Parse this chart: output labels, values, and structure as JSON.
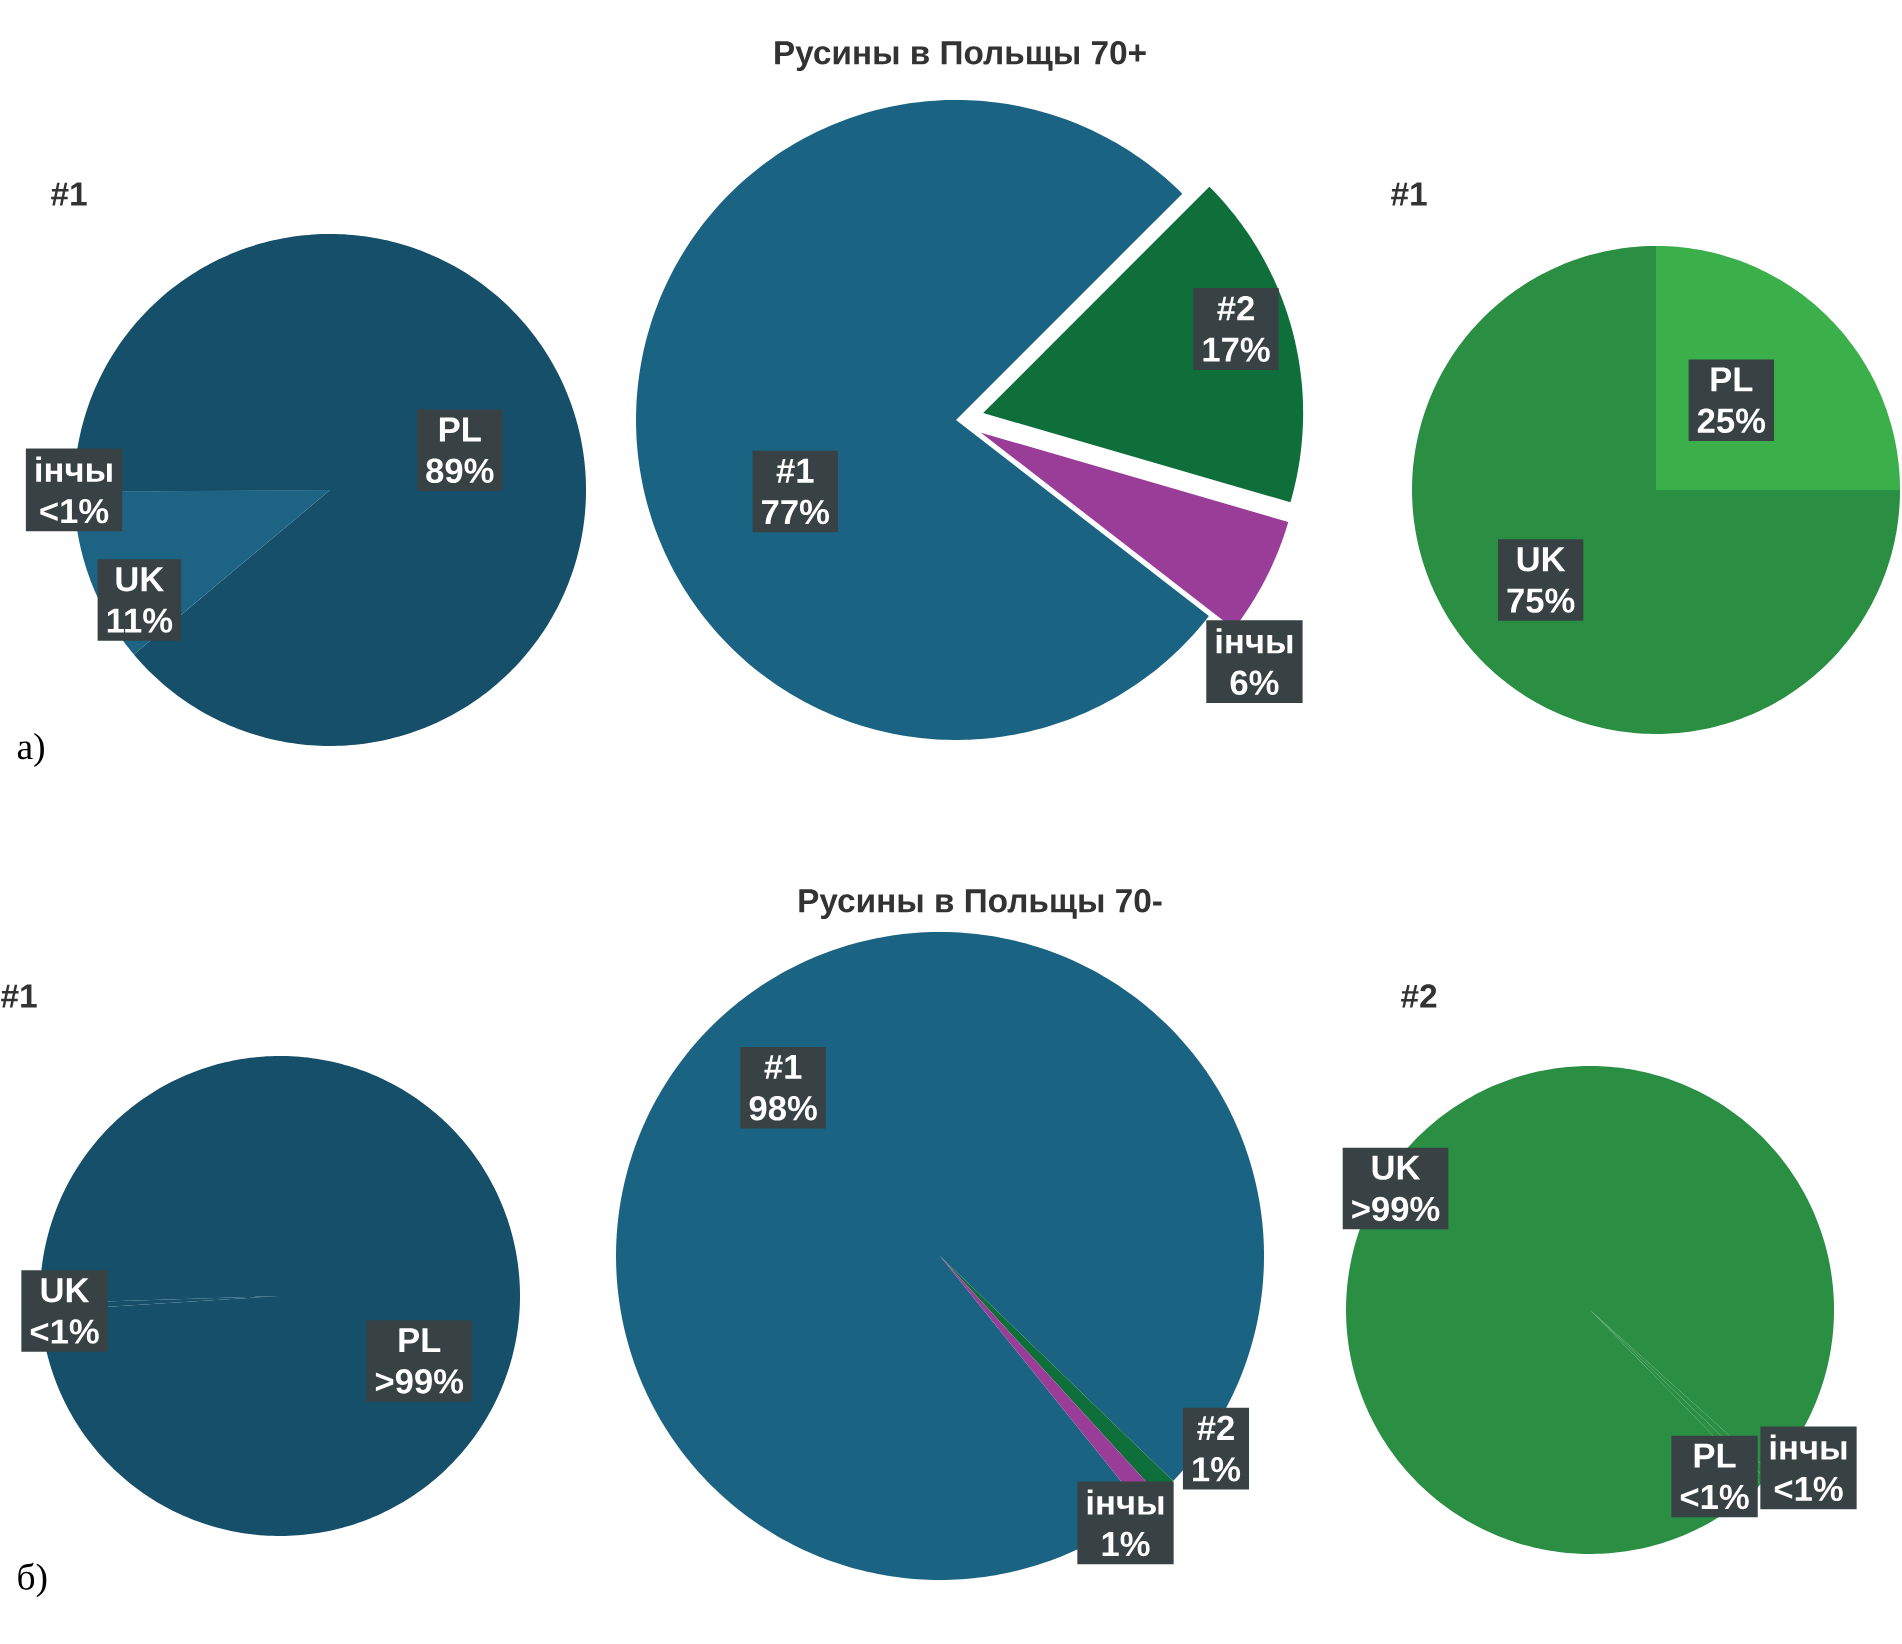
{
  "chart_data": [
    {
      "type": "pie",
      "title": "#1",
      "categories": [
        "PL",
        "UK",
        "інчы"
      ],
      "values": [
        89,
        11,
        0.3
      ],
      "value_labels": [
        "89%",
        "11%",
        "<1%"
      ],
      "colors": [
        "#154f69",
        "#1d6384",
        "#154f69"
      ],
      "annotations": [
        "а)"
      ]
    },
    {
      "type": "pie",
      "title": "Русины в Польщы 70+",
      "categories": [
        "#1",
        "#2",
        "інчы"
      ],
      "values": [
        77,
        17,
        6
      ],
      "value_labels": [
        "77%",
        "17%",
        "6%"
      ],
      "colors": [
        "#1a6383",
        "#0e6f3a",
        "#9a3d98"
      ]
    },
    {
      "type": "pie",
      "title": "#1",
      "categories": [
        "PL",
        "UK"
      ],
      "values": [
        25,
        75
      ],
      "value_labels": [
        "25%",
        "75%"
      ],
      "colors": [
        "#3aaf4a",
        "#2a8f42"
      ]
    },
    {
      "type": "pie",
      "title": "#1",
      "categories": [
        "PL",
        "UK"
      ],
      "values": [
        99.5,
        0.5
      ],
      "value_labels": [
        ">99%",
        "<1%"
      ],
      "colors": [
        "#154f69",
        "#154f69"
      ],
      "annotations": [
        "б)"
      ]
    },
    {
      "type": "pie",
      "title": "Русины в Польщы 70-",
      "categories": [
        "#1",
        "#2",
        "інчы"
      ],
      "values": [
        98,
        1,
        1
      ],
      "value_labels": [
        "98%",
        "1%",
        "1%"
      ],
      "colors": [
        "#1a6383",
        "#0e6f3a",
        "#9a3d98"
      ]
    },
    {
      "type": "pie",
      "title": "#2",
      "categories": [
        "UK",
        "інчы",
        "PL"
      ],
      "values": [
        99,
        0.5,
        0.5
      ],
      "value_labels": [
        ">99%",
        "<1%",
        "<1%"
      ],
      "colors": [
        "#2a8f42",
        "#2a8f42",
        "#2a8f42"
      ]
    }
  ]
}
